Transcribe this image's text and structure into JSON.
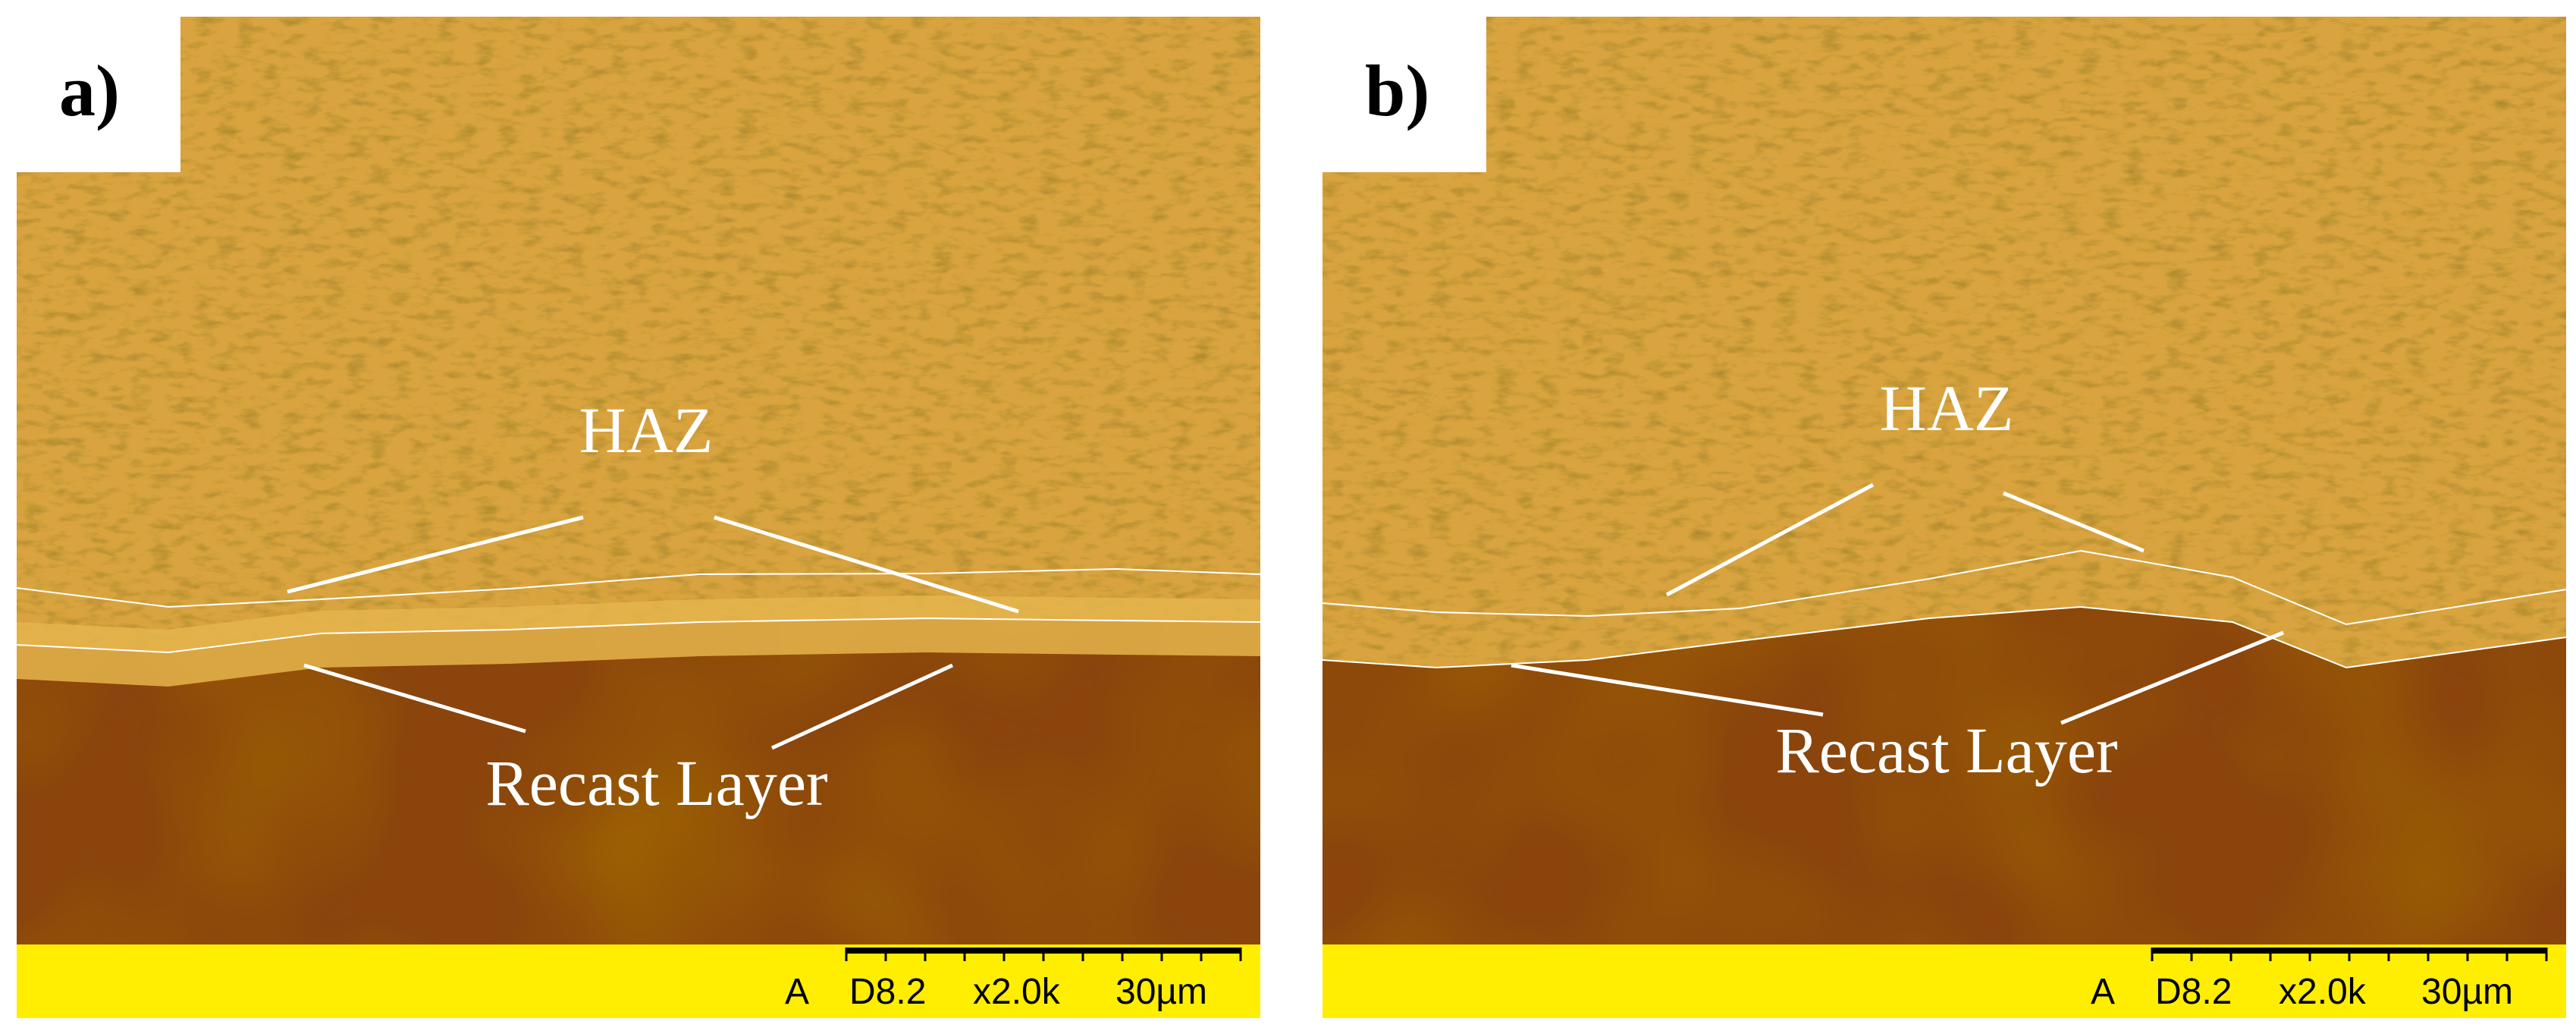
{
  "panels": [
    {
      "label": "a)",
      "annotations": [
        "HAZ",
        "Recast Layer"
      ],
      "footer": [
        "A",
        "D8.2",
        "x2.0k",
        "30µm"
      ]
    },
    {
      "label": "b)",
      "annotations": [
        "HAZ",
        "Recast Layer"
      ],
      "footer": [
        "A",
        "D8.2",
        "x2.0k",
        "30µm"
      ]
    }
  ]
}
